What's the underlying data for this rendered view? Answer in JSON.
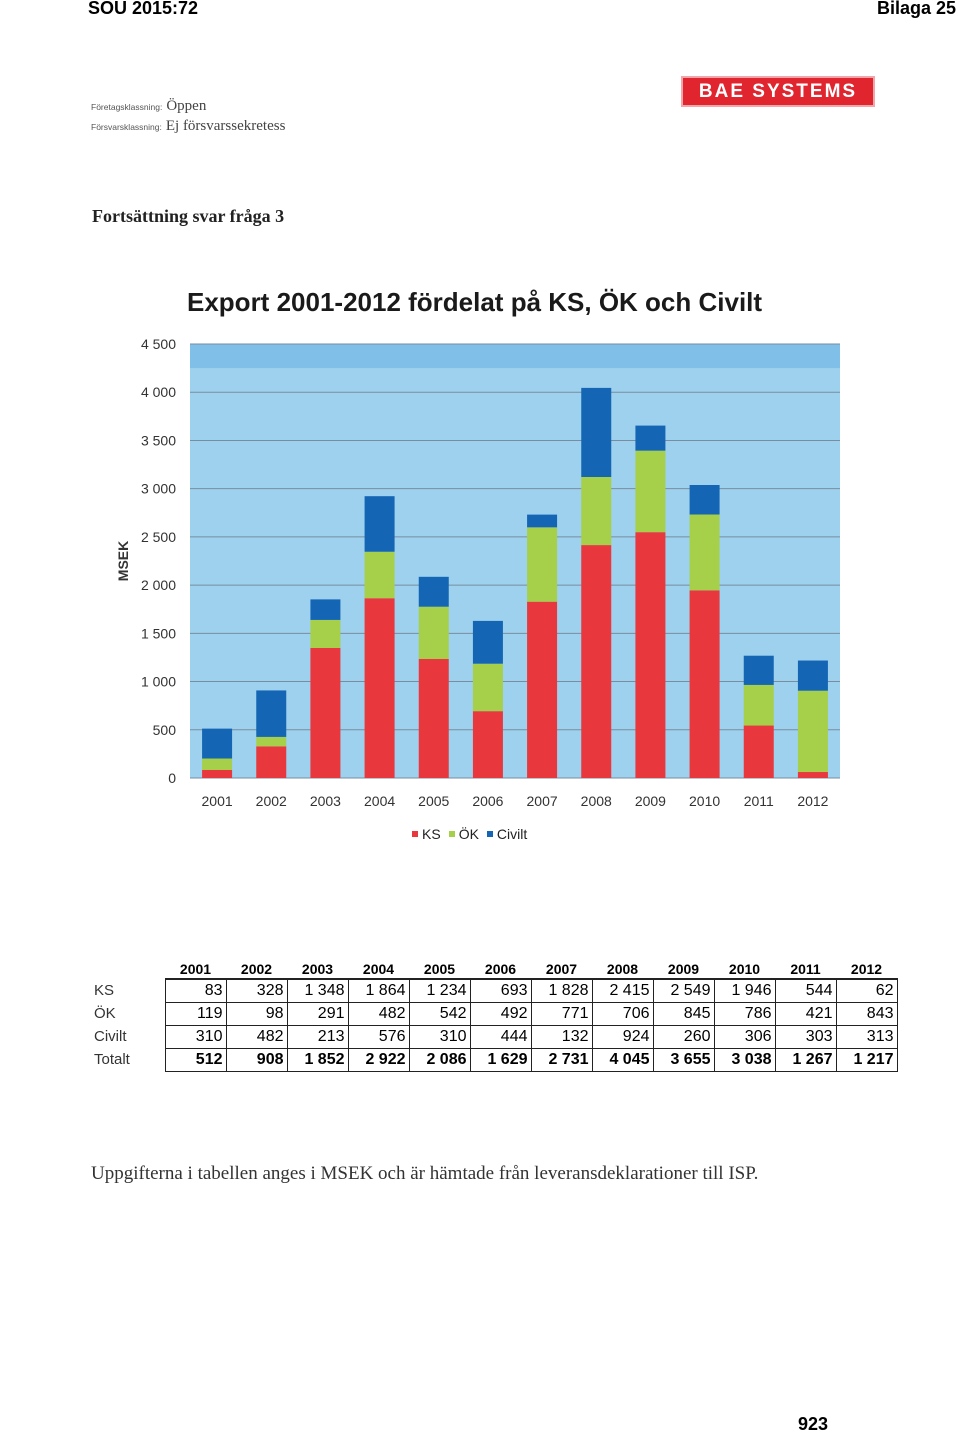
{
  "header": {
    "left": "SOU 2015:72",
    "right": "Bilaga 25"
  },
  "classification": {
    "company_label": "Företagsklassning:",
    "company_value": "Öppen",
    "defense_label": "Försvarsklassning:",
    "defense_value": "Ej försvarssekretess"
  },
  "logo": {
    "text": "BAE SYSTEMS"
  },
  "section_title": "Fortsättning svar fråga 3",
  "chart_data": {
    "type": "bar",
    "stacked": true,
    "title": "Export 2001-2012 fördelat på KS, ÖK och Civilt",
    "ylabel": "MSEK",
    "xlabel": "",
    "ylim": [
      0,
      4500
    ],
    "yticks": [
      "0",
      "500",
      "1 000",
      "1 500",
      "2 000",
      "2 500",
      "3 000",
      "3 500",
      "4 000",
      "4 500"
    ],
    "ytick_values": [
      0,
      500,
      1000,
      1500,
      2000,
      2500,
      3000,
      3500,
      4000,
      4500
    ],
    "categories": [
      "2001",
      "2002",
      "2003",
      "2004",
      "2005",
      "2006",
      "2007",
      "2008",
      "2009",
      "2010",
      "2011",
      "2012"
    ],
    "series": [
      {
        "name": "KS",
        "color": "#e8383d",
        "values": [
          83,
          328,
          1348,
          1864,
          1234,
          693,
          1828,
          2415,
          2549,
          1946,
          544,
          62
        ]
      },
      {
        "name": "ÖK",
        "color": "#a6cf4a",
        "values": [
          119,
          98,
          291,
          482,
          542,
          492,
          771,
          706,
          845,
          786,
          421,
          843
        ]
      },
      {
        "name": "Civilt",
        "color": "#1565b5",
        "values": [
          310,
          482,
          213,
          576,
          310,
          444,
          132,
          924,
          260,
          306,
          303,
          313
        ]
      }
    ],
    "legend_position": "bottom",
    "grid": true,
    "plot_background": "#9dd1ee"
  },
  "legend": [
    {
      "label": "KS",
      "color": "#e8383d"
    },
    {
      "label": "ÖK",
      "color": "#a6cf4a"
    },
    {
      "label": "Civilt",
      "color": "#1565b5"
    }
  ],
  "table": {
    "years": [
      "2001",
      "2002",
      "2003",
      "2004",
      "2005",
      "2006",
      "2007",
      "2008",
      "2009",
      "2010",
      "2011",
      "2012"
    ],
    "rows": [
      {
        "label": "KS",
        "values": [
          "83",
          "328",
          "1 348",
          "1 864",
          "1 234",
          "693",
          "1 828",
          "2 415",
          "2 549",
          "1 946",
          "544",
          "62"
        ]
      },
      {
        "label": "ÖK",
        "values": [
          "119",
          "98",
          "291",
          "482",
          "542",
          "492",
          "771",
          "706",
          "845",
          "786",
          "421",
          "843"
        ]
      },
      {
        "label": "Civilt",
        "values": [
          "310",
          "482",
          "213",
          "576",
          "310",
          "444",
          "132",
          "924",
          "260",
          "306",
          "303",
          "313"
        ]
      },
      {
        "label": "Totalt",
        "values": [
          "512",
          "908",
          "1 852",
          "2 922",
          "2 086",
          "1 629",
          "2 731",
          "4 045",
          "3 655",
          "3 038",
          "1 267",
          "1 217"
        ]
      }
    ]
  },
  "footnote": "Uppgifterna i tabellen anges i MSEK och är hämtade från leveransdeklarationer till ISP.",
  "page_number": "923"
}
